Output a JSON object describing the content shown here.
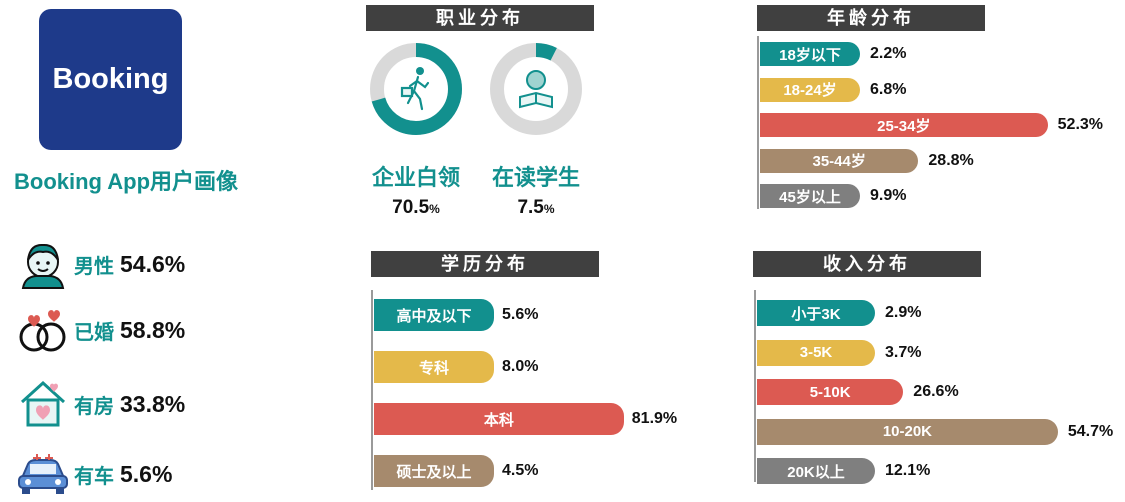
{
  "app": {
    "logo_text": "Booking",
    "title": "Booking App用户画像"
  },
  "stats": [
    {
      "label": "男性",
      "value": "54.6%",
      "icon": "male-user-icon"
    },
    {
      "label": "已婚",
      "value": "58.8%",
      "icon": "rings-icon"
    },
    {
      "label": "有房",
      "value": "33.8%",
      "icon": "house-heart-icon"
    },
    {
      "label": "有车",
      "value": "5.6%",
      "icon": "car-icon"
    }
  ],
  "colors": {
    "teal": "#12908e",
    "yellow": "#e4b94a",
    "red": "#dc5a52",
    "brown": "#a68a6d",
    "gray": "#7f7f7f",
    "header": "#404040",
    "track": "#d9d9d9"
  },
  "chart_data": [
    {
      "type": "pie",
      "variant": "donut",
      "title": "职业分布",
      "slices": [
        {
          "label": "企业白领",
          "value": 70.5,
          "display": "70.5",
          "unit": "%",
          "icon": "walking-worker-icon"
        },
        {
          "label": "在读学生",
          "value": 7.5,
          "display": "7.5",
          "unit": "%",
          "icon": "student-reading-icon"
        }
      ]
    },
    {
      "type": "bar",
      "orientation": "horizontal",
      "title": "年龄分布",
      "categories": [
        "18岁以下",
        "18-24岁",
        "25-34岁",
        "35-44岁",
        "45岁以上"
      ],
      "values": [
        2.2,
        6.8,
        52.3,
        28.8,
        9.9
      ],
      "labels": [
        "2.2%",
        "6.8%",
        "52.3%",
        "28.8%",
        "9.9%"
      ]
    },
    {
      "type": "bar",
      "orientation": "horizontal",
      "title": "学历分布",
      "categories": [
        "高中及以下",
        "专科",
        "本科",
        "硕士及以上"
      ],
      "values": [
        5.6,
        8.0,
        81.9,
        4.5
      ],
      "labels": [
        "5.6%",
        "8.0%",
        "81.9%",
        "4.5%"
      ]
    },
    {
      "type": "bar",
      "orientation": "horizontal",
      "title": "收入分布",
      "categories": [
        "小于3K",
        "3-5K",
        "5-10K",
        "10-20K",
        "20K以上"
      ],
      "values": [
        2.9,
        3.7,
        26.6,
        54.7,
        12.1
      ],
      "labels": [
        "2.9%",
        "3.7%",
        "26.6%",
        "54.7%",
        "12.1%"
      ]
    }
  ]
}
